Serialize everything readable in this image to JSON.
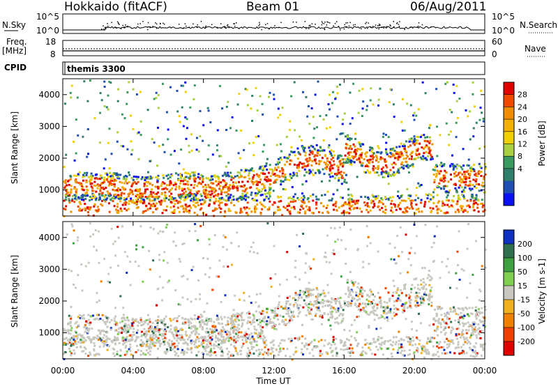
{
  "header": {
    "station": "Hokkaido (fitACF)",
    "beam": "Beam 01",
    "date": "06/Aug/2011"
  },
  "strip_panels": {
    "nsky_label": "N.Sky",
    "nsearch_label": "N.Search",
    "nsky_ticks": [
      "10^5",
      "10^0"
    ],
    "nsearch_ticks": [
      "10^5",
      "10^0"
    ],
    "freq_label_1": "Freq.",
    "freq_label_2": "[MHz]",
    "freq_ticks": [
      "18",
      "8"
    ],
    "nave_label": "Nave",
    "nave_ticks": [
      "60",
      "0"
    ],
    "cpid_label": "CPID",
    "cpid_value": "themis 3300"
  },
  "chart_data": [
    {
      "type": "heatmap",
      "name": "power",
      "ylabel": "Slant Range [km]",
      "xlabel": "Time UT",
      "x_ticks": [
        "00:00",
        "04:00",
        "08:00",
        "12:00",
        "16:00",
        "20:00",
        "00:00"
      ],
      "xlim_hours": [
        0,
        24
      ],
      "y_ticks": [
        1000,
        2000,
        3000,
        4000
      ],
      "ylim": [
        180,
        4500
      ],
      "colorbar": {
        "label": "Power [dB]",
        "tick_labels": [
          "28",
          "24",
          "20",
          "16",
          "12",
          "8",
          "4"
        ],
        "colors": [
          "#e00000",
          "#f04a00",
          "#f08c00",
          "#f4b000",
          "#f0d000",
          "#a8d040",
          "#3a9a60",
          "#2f7f6a",
          "#1f4fb0",
          "#0a10f0"
        ]
      }
    },
    {
      "type": "heatmap",
      "name": "velocity",
      "ylabel": "Slant Range [km]",
      "xlabel": "Time UT",
      "x_ticks": [
        "00:00",
        "04:00",
        "08:00",
        "12:00",
        "16:00",
        "20:00",
        "00:00"
      ],
      "xlim_hours": [
        0,
        24
      ],
      "y_ticks": [
        1000,
        2000,
        3000,
        4000
      ],
      "ylim": [
        180,
        4500
      ],
      "colorbar": {
        "label": "Velocity [m s-1]",
        "tick_labels": [
          "200",
          "100",
          "50",
          "15",
          "-15",
          "-50",
          "-100",
          "-200"
        ],
        "colors": [
          "#1030c0",
          "#2f6f50",
          "#3ea040",
          "#7fd050",
          "#c8c8c0",
          "#f0b020",
          "#f08000",
          "#f04000",
          "#e00000"
        ]
      }
    }
  ],
  "footer": {
    "time_axis_label": "Time UT"
  }
}
